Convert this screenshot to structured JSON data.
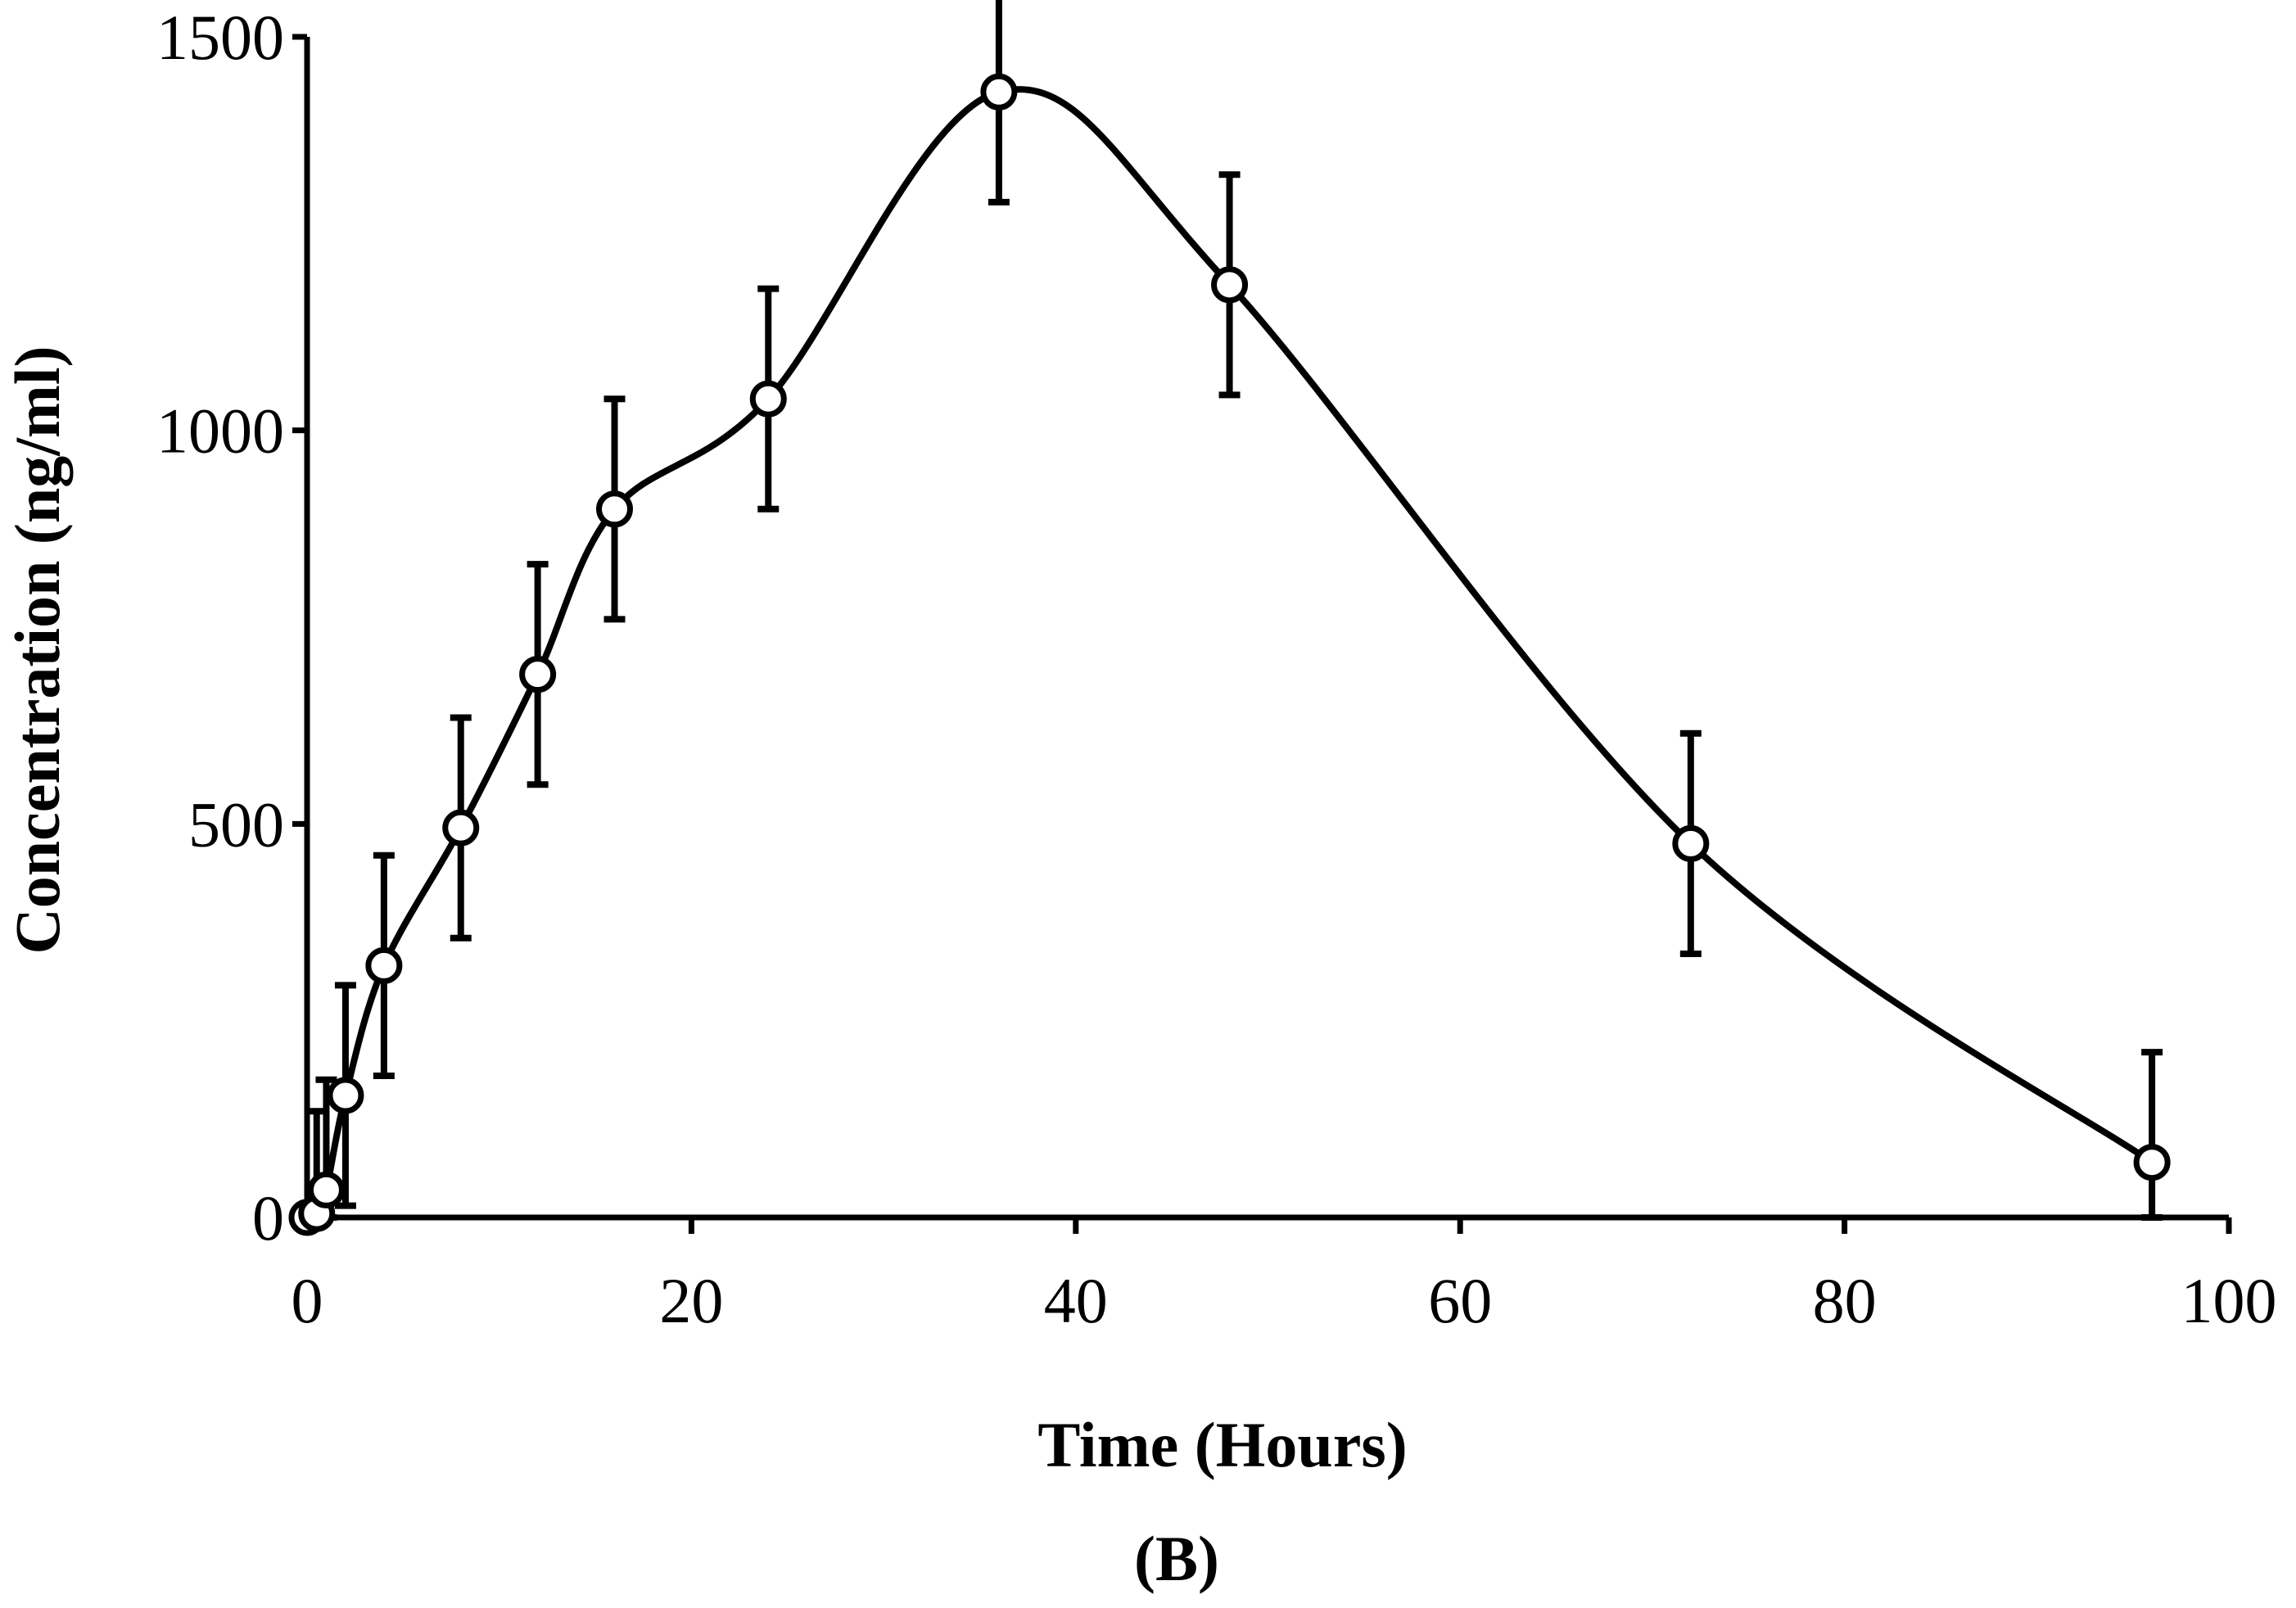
{
  "chart_data": {
    "type": "line",
    "title": "",
    "panel_label": "(B)",
    "xlabel": "Time (Hours)",
    "ylabel": "Concentration (ng/ml)",
    "xlim": [
      0,
      100
    ],
    "ylim": [
      0,
      1500
    ],
    "xticks": [
      0,
      20,
      40,
      60,
      80,
      100
    ],
    "yticks": [
      0,
      500,
      1000,
      1500
    ],
    "grid": false,
    "legend": "none",
    "series": [
      {
        "name": "Concentration",
        "marker": "open-circle",
        "line": "smooth",
        "x": [
          0,
          0.5,
          1,
          2,
          4,
          8,
          12,
          16,
          24,
          36,
          48,
          72,
          96
        ],
        "y": [
          0,
          5,
          35,
          155,
          320,
          495,
          690,
          900,
          1040,
          1430,
          1185,
          475,
          70
        ],
        "error": [
          0,
          130,
          140,
          140,
          140,
          140,
          140,
          140,
          140,
          140,
          140,
          140,
          140
        ]
      }
    ]
  }
}
